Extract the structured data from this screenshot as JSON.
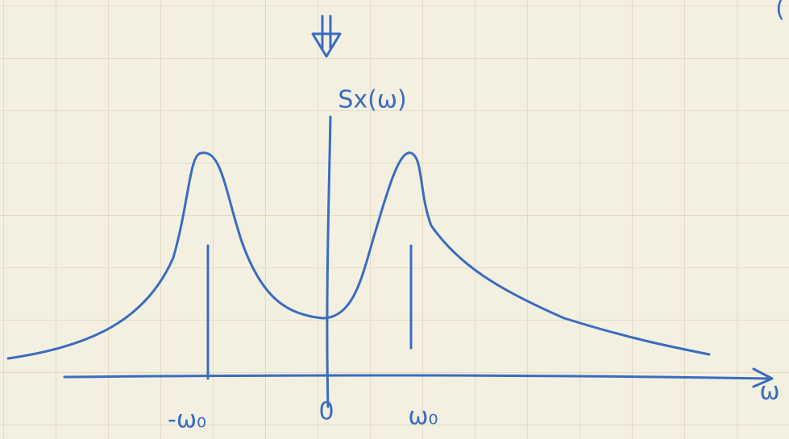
{
  "diagram": {
    "y_label": "Sx(ω)",
    "x_label": "ω",
    "ticks": [
      "-ω₀",
      "0",
      "ω₀"
    ],
    "margin_mark": "("
  }
}
